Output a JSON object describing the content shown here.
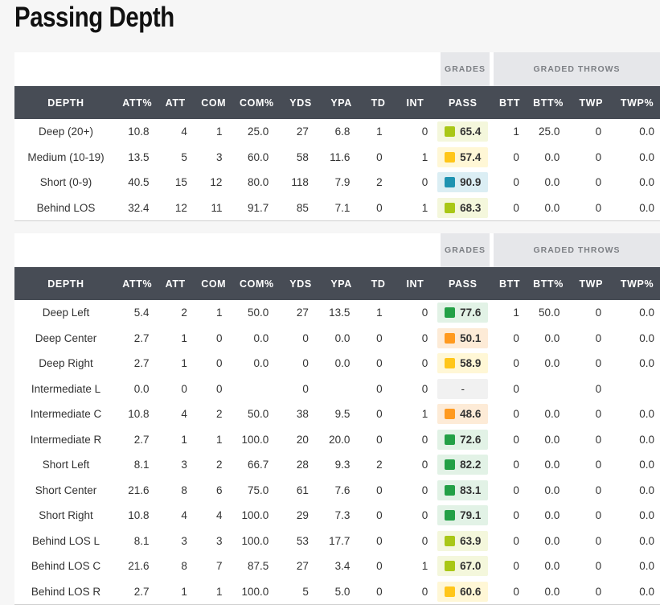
{
  "title": "Passing Depth",
  "group_labels": {
    "grades": "GRADES",
    "graded_throws": "GRADED THROWS"
  },
  "columns": [
    "DEPTH",
    "ATT%",
    "ATT",
    "COM",
    "COM%",
    "YDS",
    "YPA",
    "TD",
    "INT",
    "PASS",
    "BTT",
    "BTT%",
    "TWP",
    "TWP%"
  ],
  "grade_colors": {
    "lime": "#a9c716",
    "yellow": "#ffc61a",
    "teal": "#1e93b1",
    "green": "#23a046",
    "orange": "#ff9a1f"
  },
  "table1": [
    {
      "depth": "Deep (20+)",
      "att_pct": "10.8",
      "att": "4",
      "com": "1",
      "com_pct": "25.0",
      "yds": "27",
      "ypa": "6.8",
      "td": "1",
      "int": "0",
      "pass": "65.4",
      "grade": "lime",
      "btt": "1",
      "btt_pct": "25.0",
      "twp": "0",
      "twp_pct": "0.0"
    },
    {
      "depth": "Medium (10-19)",
      "att_pct": "13.5",
      "att": "5",
      "com": "3",
      "com_pct": "60.0",
      "yds": "58",
      "ypa": "11.6",
      "td": "0",
      "int": "1",
      "pass": "57.4",
      "grade": "yellow",
      "btt": "0",
      "btt_pct": "0.0",
      "twp": "0",
      "twp_pct": "0.0"
    },
    {
      "depth": "Short (0-9)",
      "att_pct": "40.5",
      "att": "15",
      "com": "12",
      "com_pct": "80.0",
      "yds": "118",
      "ypa": "7.9",
      "td": "2",
      "int": "0",
      "pass": "90.9",
      "grade": "teal",
      "btt": "0",
      "btt_pct": "0.0",
      "twp": "0",
      "twp_pct": "0.0"
    },
    {
      "depth": "Behind LOS",
      "att_pct": "32.4",
      "att": "12",
      "com": "11",
      "com_pct": "91.7",
      "yds": "85",
      "ypa": "7.1",
      "td": "0",
      "int": "1",
      "pass": "68.3",
      "grade": "lime",
      "btt": "0",
      "btt_pct": "0.0",
      "twp": "0",
      "twp_pct": "0.0"
    }
  ],
  "table2": [
    {
      "depth": "Deep Left",
      "att_pct": "5.4",
      "att": "2",
      "com": "1",
      "com_pct": "50.0",
      "yds": "27",
      "ypa": "13.5",
      "td": "1",
      "int": "0",
      "pass": "77.6",
      "grade": "green",
      "btt": "1",
      "btt_pct": "50.0",
      "twp": "0",
      "twp_pct": "0.0"
    },
    {
      "depth": "Deep Center",
      "att_pct": "2.7",
      "att": "1",
      "com": "0",
      "com_pct": "0.0",
      "yds": "0",
      "ypa": "0.0",
      "td": "0",
      "int": "0",
      "pass": "50.1",
      "grade": "orange",
      "btt": "0",
      "btt_pct": "0.0",
      "twp": "0",
      "twp_pct": "0.0"
    },
    {
      "depth": "Deep Right",
      "att_pct": "2.7",
      "att": "1",
      "com": "0",
      "com_pct": "0.0",
      "yds": "0",
      "ypa": "0.0",
      "td": "0",
      "int": "0",
      "pass": "58.9",
      "grade": "yellow",
      "btt": "0",
      "btt_pct": "0.0",
      "twp": "0",
      "twp_pct": "0.0"
    },
    {
      "depth": "Intermediate L",
      "att_pct": "0.0",
      "att": "0",
      "com": "0",
      "com_pct": "",
      "yds": "0",
      "ypa": "",
      "td": "0",
      "int": "0",
      "pass": "-",
      "grade": "none",
      "btt": "0",
      "btt_pct": "",
      "twp": "0",
      "twp_pct": ""
    },
    {
      "depth": "Intermediate C",
      "att_pct": "10.8",
      "att": "4",
      "com": "2",
      "com_pct": "50.0",
      "yds": "38",
      "ypa": "9.5",
      "td": "0",
      "int": "1",
      "pass": "48.6",
      "grade": "orange",
      "btt": "0",
      "btt_pct": "0.0",
      "twp": "0",
      "twp_pct": "0.0"
    },
    {
      "depth": "Intermediate R",
      "att_pct": "2.7",
      "att": "1",
      "com": "1",
      "com_pct": "100.0",
      "yds": "20",
      "ypa": "20.0",
      "td": "0",
      "int": "0",
      "pass": "72.6",
      "grade": "green",
      "btt": "0",
      "btt_pct": "0.0",
      "twp": "0",
      "twp_pct": "0.0"
    },
    {
      "depth": "Short Left",
      "att_pct": "8.1",
      "att": "3",
      "com": "2",
      "com_pct": "66.7",
      "yds": "28",
      "ypa": "9.3",
      "td": "2",
      "int": "0",
      "pass": "82.2",
      "grade": "green",
      "btt": "0",
      "btt_pct": "0.0",
      "twp": "0",
      "twp_pct": "0.0"
    },
    {
      "depth": "Short Center",
      "att_pct": "21.6",
      "att": "8",
      "com": "6",
      "com_pct": "75.0",
      "yds": "61",
      "ypa": "7.6",
      "td": "0",
      "int": "0",
      "pass": "83.1",
      "grade": "green",
      "btt": "0",
      "btt_pct": "0.0",
      "twp": "0",
      "twp_pct": "0.0"
    },
    {
      "depth": "Short Right",
      "att_pct": "10.8",
      "att": "4",
      "com": "4",
      "com_pct": "100.0",
      "yds": "29",
      "ypa": "7.3",
      "td": "0",
      "int": "0",
      "pass": "79.1",
      "grade": "green",
      "btt": "0",
      "btt_pct": "0.0",
      "twp": "0",
      "twp_pct": "0.0"
    },
    {
      "depth": "Behind LOS L",
      "att_pct": "8.1",
      "att": "3",
      "com": "3",
      "com_pct": "100.0",
      "yds": "53",
      "ypa": "17.7",
      "td": "0",
      "int": "0",
      "pass": "63.9",
      "grade": "lime",
      "btt": "0",
      "btt_pct": "0.0",
      "twp": "0",
      "twp_pct": "0.0"
    },
    {
      "depth": "Behind LOS C",
      "att_pct": "21.6",
      "att": "8",
      "com": "7",
      "com_pct": "87.5",
      "yds": "27",
      "ypa": "3.4",
      "td": "0",
      "int": "1",
      "pass": "67.0",
      "grade": "lime",
      "btt": "0",
      "btt_pct": "0.0",
      "twp": "0",
      "twp_pct": "0.0"
    },
    {
      "depth": "Behind LOS R",
      "att_pct": "2.7",
      "att": "1",
      "com": "1",
      "com_pct": "100.0",
      "yds": "5",
      "ypa": "5.0",
      "td": "0",
      "int": "0",
      "pass": "60.6",
      "grade": "yellow",
      "btt": "0",
      "btt_pct": "0.0",
      "twp": "0",
      "twp_pct": "0.0"
    }
  ]
}
